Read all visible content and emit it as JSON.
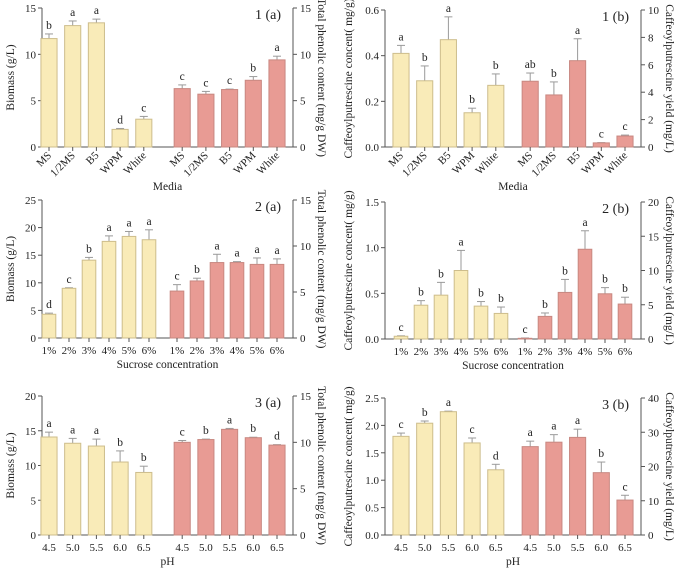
{
  "colors": {
    "left_fill": "#f9ebb8",
    "left_stroke": "#cdbd8c",
    "right_fill": "#e89b94",
    "right_stroke": "#c88881",
    "error": "#9a9a9a",
    "axis": "#555555"
  },
  "chart_data": [
    {
      "type": "bar",
      "panel_label": "1 (a)",
      "xlabel": "Media",
      "ylabel_left": "Biomass (g/L)",
      "ylabel_right": "Total phenolic content (mg/g DW)",
      "ylim_left": [
        0,
        15
      ],
      "yticks_left": [
        "0",
        "5",
        "10",
        "15"
      ],
      "ylim_right": [
        0,
        15
      ],
      "yticks_right": [
        "0",
        "5",
        "10",
        "15"
      ],
      "categories": [
        "MS",
        "1/2MS",
        "B5",
        "WPM",
        "White"
      ],
      "rotate_ticks": true,
      "series": [
        {
          "axis": "left",
          "values": [
            11.7,
            13.1,
            13.4,
            1.9,
            3.0
          ],
          "errors": [
            0.5,
            0.5,
            0.4,
            0.1,
            0.3
          ],
          "letters": [
            "b",
            "a",
            "a",
            "d",
            "c"
          ]
        },
        {
          "axis": "right",
          "values": [
            6.3,
            5.7,
            6.2,
            7.2,
            9.4
          ],
          "errors": [
            0.4,
            0.3,
            0.05,
            0.4,
            0.4
          ],
          "letters": [
            "c",
            "c",
            "c",
            "b",
            "a"
          ]
        }
      ]
    },
    {
      "type": "bar",
      "panel_label": "1 (b)",
      "xlabel": "Media",
      "ylabel_left": "Caffeoylputrescine concent( mg/g)",
      "ylabel_right": "Caffeoylputrescine yield (mg/L)",
      "ylim_left": [
        0,
        0.6
      ],
      "yticks_left": [
        "0.0",
        "0.2",
        "0.4",
        "0.6"
      ],
      "ylim_right": [
        0,
        10
      ],
      "yticks_right": [
        "0",
        "2",
        "4",
        "6",
        "8",
        "10"
      ],
      "categories": [
        "MS",
        "1/2MS",
        "B5",
        "WPM",
        "White"
      ],
      "rotate_ticks": true,
      "series": [
        {
          "axis": "left",
          "values": [
            0.41,
            0.29,
            0.47,
            0.15,
            0.27
          ],
          "errors": [
            0.035,
            0.065,
            0.1,
            0.02,
            0.05
          ],
          "letters": [
            "a",
            "b",
            "a",
            "b",
            "b"
          ]
        },
        {
          "axis": "right",
          "values": [
            4.8,
            3.8,
            6.3,
            0.3,
            0.8
          ],
          "errors": [
            0.6,
            0.95,
            1.6,
            0.02,
            0.07
          ],
          "letters": [
            "ab",
            "b",
            "a",
            "c",
            "c"
          ]
        }
      ]
    },
    {
      "type": "bar",
      "panel_label": "2 (a)",
      "xlabel": "Sucrose concentration",
      "ylabel_left": "Biomass (g/L)",
      "ylabel_right": "Total phenolic content (mg/g DW)",
      "ylim_left": [
        0,
        25
      ],
      "yticks_left": [
        "0",
        "5",
        "10",
        "15",
        "20",
        "25"
      ],
      "ylim_right": [
        0,
        15
      ],
      "yticks_right": [
        "0",
        "5",
        "10",
        "15"
      ],
      "categories": [
        "1%",
        "2%",
        "3%",
        "4%",
        "5%",
        "6%"
      ],
      "rotate_ticks": false,
      "series": [
        {
          "axis": "left",
          "values": [
            4.3,
            9.0,
            14.1,
            17.5,
            18.4,
            17.8
          ],
          "errors": [
            0.2,
            0.1,
            0.5,
            1.0,
            0.9,
            1.8
          ],
          "letters": [
            "d",
            "c",
            "b",
            "a",
            "a",
            "a"
          ]
        },
        {
          "axis": "right",
          "values": [
            5.1,
            6.2,
            8.2,
            8.2,
            8.0,
            8.0
          ],
          "errors": [
            0.7,
            0.3,
            0.9,
            0.1,
            0.7,
            0.6
          ],
          "letters": [
            "c",
            "b",
            "a",
            "a",
            "a",
            "a"
          ]
        }
      ]
    },
    {
      "type": "bar",
      "panel_label": "2 (b)",
      "xlabel": "Sucrose concentration",
      "ylabel_left": "Caffeoylputrescine concent( mg/g)",
      "ylabel_right": "Caffeoylputrescine yield (mg/L)",
      "ylim_left": [
        0,
        1.5
      ],
      "yticks_left": [
        "0.0",
        "0.5",
        "1.0",
        "1.5"
      ],
      "ylim_right": [
        0,
        20
      ],
      "yticks_right": [
        "0",
        "5",
        "10",
        "15",
        "20"
      ],
      "categories": [
        "1%",
        "2%",
        "3%",
        "4%",
        "5%",
        "6%"
      ],
      "rotate_ticks": false,
      "series": [
        {
          "axis": "left",
          "values": [
            0.03,
            0.37,
            0.48,
            0.75,
            0.36,
            0.28
          ],
          "errors": [
            0.005,
            0.05,
            0.14,
            0.22,
            0.05,
            0.07
          ],
          "letters": [
            "c",
            "b",
            "b",
            "a",
            "b",
            "b"
          ]
        },
        {
          "axis": "right",
          "values": [
            0.1,
            3.3,
            6.8,
            13.1,
            6.6,
            5.1
          ],
          "errors": [
            0.05,
            0.5,
            1.9,
            2.7,
            0.9,
            1.0
          ],
          "letters": [
            "c",
            "b",
            "b",
            "a",
            "b",
            "b"
          ]
        }
      ]
    },
    {
      "type": "bar",
      "panel_label": "3 (a)",
      "xlabel": "pH",
      "ylabel_left": "Biomass (g/L)",
      "ylabel_right": "Total phenolic content (mg/g DW)",
      "ylim_left": [
        0,
        20
      ],
      "yticks_left": [
        "0",
        "5",
        "10",
        "15",
        "20"
      ],
      "ylim_right": [
        0,
        15
      ],
      "yticks_right": [
        "0",
        "5",
        "10",
        "15"
      ],
      "categories": [
        "4.5",
        "5.0",
        "5.5",
        "6.0",
        "6.5"
      ],
      "rotate_ticks": false,
      "series": [
        {
          "axis": "left",
          "values": [
            14.1,
            13.2,
            12.8,
            10.5,
            9.0
          ],
          "errors": [
            0.7,
            0.7,
            1.0,
            1.6,
            0.9
          ],
          "letters": [
            "a",
            "a",
            "a",
            "b",
            "b"
          ]
        },
        {
          "axis": "right",
          "values": [
            10.0,
            10.3,
            11.4,
            10.5,
            9.7
          ],
          "errors": [
            0.2,
            0.05,
            0.1,
            0.05,
            0.05
          ],
          "letters": [
            "c",
            "b",
            "a",
            "b",
            "d"
          ]
        }
      ]
    },
    {
      "type": "bar",
      "panel_label": "3 (b)",
      "xlabel": "pH",
      "ylabel_left": "Caffeoylputrescine concent( mg/g)",
      "ylabel_right": "Caffeoylputrescine yield (mg/L)",
      "ylim_left": [
        0,
        2.5
      ],
      "yticks_left": [
        "0.0",
        "0.5",
        "1.0",
        "1.5",
        "2.0",
        "2.5"
      ],
      "ylim_right": [
        0,
        40
      ],
      "yticks_right": [
        "0",
        "10",
        "20",
        "30",
        "40"
      ],
      "categories": [
        "4.5",
        "5.0",
        "5.5",
        "6.0",
        "6.5"
      ],
      "rotate_ticks": false,
      "series": [
        {
          "axis": "left",
          "values": [
            1.8,
            2.04,
            2.25,
            1.68,
            1.19
          ],
          "errors": [
            0.06,
            0.04,
            0.01,
            0.09,
            0.1
          ],
          "letters": [
            "c",
            "b",
            "a",
            "c",
            "d"
          ]
        },
        {
          "axis": "right",
          "values": [
            25.8,
            27.1,
            28.5,
            18.2,
            10.2
          ],
          "errors": [
            1.6,
            2.2,
            2.4,
            3.1,
            1.4
          ],
          "letters": [
            "a",
            "a",
            "a",
            "b",
            "c"
          ]
        }
      ]
    }
  ]
}
